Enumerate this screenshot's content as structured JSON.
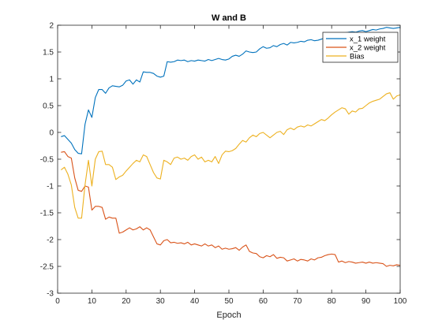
{
  "chart_data": {
    "type": "line",
    "title": "W and B",
    "xlabel": "Epoch",
    "ylabel": "",
    "xlim": [
      0,
      100
    ],
    "ylim": [
      -3,
      2
    ],
    "xticks": [
      0,
      10,
      20,
      30,
      40,
      50,
      60,
      70,
      80,
      90,
      100
    ],
    "yticks": [
      -3,
      -2.5,
      -2,
      -1.5,
      -1,
      -0.5,
      0,
      0.5,
      1,
      1.5,
      2
    ],
    "xtick_labels": [
      "0",
      "10",
      "20",
      "30",
      "40",
      "50",
      "60",
      "70",
      "80",
      "90",
      "100"
    ],
    "ytick_labels": [
      "-3",
      "-2.5",
      "-2",
      "-1.5",
      "-1",
      "-0.5",
      "0",
      "0.5",
      "1",
      "1.5",
      "2"
    ],
    "grid": false,
    "legend_position": "top-right",
    "x": [
      1,
      2,
      3,
      4,
      5,
      6,
      7,
      8,
      9,
      10,
      11,
      12,
      13,
      14,
      15,
      16,
      17,
      18,
      19,
      20,
      21,
      22,
      23,
      24,
      25,
      26,
      27,
      28,
      29,
      30,
      31,
      32,
      33,
      34,
      35,
      36,
      37,
      38,
      39,
      40,
      41,
      42,
      43,
      44,
      45,
      46,
      47,
      48,
      49,
      50,
      51,
      52,
      53,
      54,
      55,
      56,
      57,
      58,
      59,
      60,
      61,
      62,
      63,
      64,
      65,
      66,
      67,
      68,
      69,
      70,
      71,
      72,
      73,
      74,
      75,
      76,
      77,
      78,
      79,
      80,
      81,
      82,
      83,
      84,
      85,
      86,
      87,
      88,
      89,
      90,
      91,
      92,
      93,
      94,
      95,
      96,
      97,
      98,
      99,
      100
    ],
    "series": [
      {
        "name": "x_1 weight",
        "color": "#0072BD",
        "values": [
          -0.08,
          -0.06,
          -0.13,
          -0.2,
          -0.32,
          -0.39,
          -0.4,
          0.15,
          0.42,
          0.28,
          0.65,
          0.8,
          0.8,
          0.73,
          0.83,
          0.87,
          0.86,
          0.85,
          0.88,
          0.96,
          0.98,
          0.9,
          0.98,
          0.94,
          1.13,
          1.12,
          1.12,
          1.1,
          1.05,
          1.03,
          1.05,
          1.32,
          1.31,
          1.32,
          1.35,
          1.34,
          1.35,
          1.32,
          1.34,
          1.33,
          1.35,
          1.34,
          1.33,
          1.36,
          1.34,
          1.36,
          1.38,
          1.36,
          1.35,
          1.37,
          1.42,
          1.44,
          1.42,
          1.46,
          1.52,
          1.5,
          1.49,
          1.5,
          1.56,
          1.6,
          1.57,
          1.58,
          1.62,
          1.6,
          1.64,
          1.66,
          1.63,
          1.68,
          1.67,
          1.68,
          1.7,
          1.69,
          1.72,
          1.73,
          1.71,
          1.72,
          1.74,
          1.76,
          1.78,
          1.8,
          1.83,
          1.85,
          1.84,
          1.86,
          1.87,
          1.88,
          1.87,
          1.89,
          1.9,
          1.88,
          1.9,
          1.92,
          1.91,
          1.93,
          1.94,
          1.96,
          1.95,
          1.94,
          1.95,
          1.96
        ]
      },
      {
        "name": "x_2 weight",
        "color": "#D95319",
        "values": [
          -0.37,
          -0.36,
          -0.45,
          -0.48,
          -0.85,
          -1.08,
          -1.1,
          -1.0,
          -1.02,
          -1.45,
          -1.38,
          -1.38,
          -1.4,
          -1.62,
          -1.58,
          -1.6,
          -1.6,
          -1.88,
          -1.86,
          -1.82,
          -1.78,
          -1.82,
          -1.8,
          -1.76,
          -1.82,
          -1.78,
          -1.82,
          -1.95,
          -2.08,
          -2.1,
          -2.02,
          -2.0,
          -2.06,
          -2.05,
          -2.07,
          -2.06,
          -2.08,
          -2.05,
          -2.1,
          -2.08,
          -2.1,
          -2.12,
          -2.08,
          -2.12,
          -2.1,
          -2.15,
          -2.12,
          -2.18,
          -2.16,
          -2.18,
          -2.17,
          -2.15,
          -2.2,
          -2.14,
          -2.1,
          -2.22,
          -2.25,
          -2.26,
          -2.32,
          -2.34,
          -2.3,
          -2.32,
          -2.28,
          -2.35,
          -2.33,
          -2.34,
          -2.4,
          -2.38,
          -2.36,
          -2.4,
          -2.37,
          -2.38,
          -2.4,
          -2.36,
          -2.38,
          -2.34,
          -2.33,
          -2.3,
          -2.28,
          -2.27,
          -2.28,
          -2.42,
          -2.4,
          -2.43,
          -2.41,
          -2.42,
          -2.44,
          -2.43,
          -2.42,
          -2.44,
          -2.42,
          -2.44,
          -2.43,
          -2.44,
          -2.45,
          -2.5,
          -2.48,
          -2.49,
          -2.47,
          -2.48
        ]
      },
      {
        "name": "Bias",
        "color": "#EDB120",
        "values": [
          -0.7,
          -0.65,
          -0.78,
          -0.98,
          -1.4,
          -1.6,
          -1.6,
          -0.98,
          -0.52,
          -1.0,
          -0.5,
          -0.36,
          -0.35,
          -0.6,
          -0.6,
          -0.65,
          -0.88,
          -0.83,
          -0.8,
          -0.72,
          -0.65,
          -0.58,
          -0.52,
          -0.55,
          -0.42,
          -0.45,
          -0.6,
          -0.75,
          -0.85,
          -0.87,
          -0.52,
          -0.55,
          -0.6,
          -0.48,
          -0.46,
          -0.5,
          -0.48,
          -0.52,
          -0.45,
          -0.42,
          -0.5,
          -0.46,
          -0.55,
          -0.52,
          -0.55,
          -0.45,
          -0.58,
          -0.42,
          -0.35,
          -0.36,
          -0.34,
          -0.3,
          -0.22,
          -0.15,
          -0.18,
          -0.1,
          -0.05,
          -0.08,
          -0.02,
          0.0,
          -0.05,
          -0.1,
          -0.05,
          0.0,
          0.02,
          -0.04,
          0.05,
          0.08,
          0.05,
          0.1,
          0.12,
          0.1,
          0.14,
          0.12,
          0.16,
          0.2,
          0.24,
          0.22,
          0.27,
          0.33,
          0.38,
          0.42,
          0.46,
          0.44,
          0.34,
          0.4,
          0.38,
          0.44,
          0.45,
          0.5,
          0.55,
          0.58,
          0.6,
          0.62,
          0.67,
          0.72,
          0.74,
          0.62,
          0.68,
          0.7
        ]
      }
    ]
  }
}
